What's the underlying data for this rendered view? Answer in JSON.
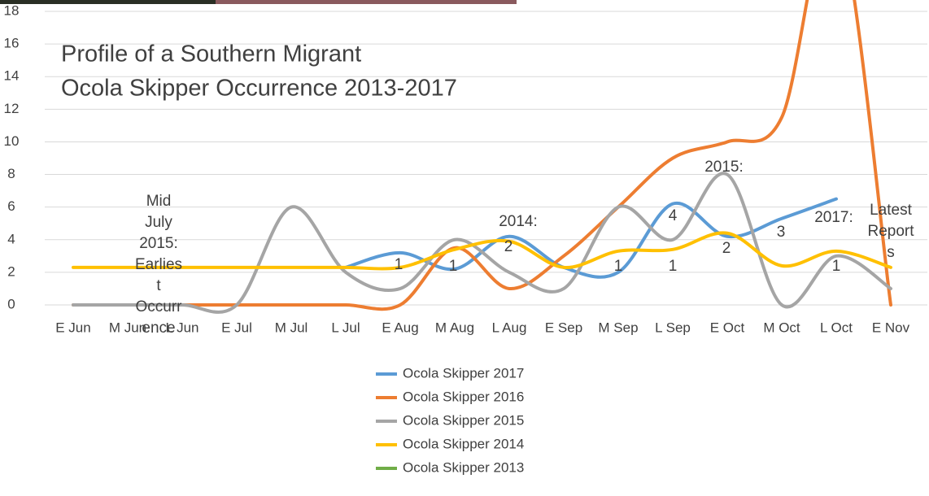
{
  "chart_data": {
    "type": "line",
    "title": [
      "Profile of a Southern Migrant",
      "Ocola Skipper Occurrence 2013-2017"
    ],
    "categories": [
      "E Jun",
      "M Jun",
      "L Jun",
      "E Jul",
      "M Jul",
      "L Jul",
      "E Aug",
      "M Aug",
      "L Aug",
      "E Sep",
      "M Sep",
      "L Sep",
      "E Oct",
      "M Oct",
      "L Oct",
      "E Nov"
    ],
    "series": [
      {
        "name": "Ocola Skipper 2017",
        "color": "#5b9bd5",
        "values": [
          null,
          null,
          null,
          null,
          null,
          2.3,
          3.2,
          2.2,
          4.2,
          2.3,
          2,
          6.2,
          4.2,
          5.3,
          6.5,
          null
        ]
      },
      {
        "name": "Ocola Skipper 2016",
        "color": "#ed7d31",
        "values": [
          0,
          0,
          0,
          0,
          0,
          0,
          0,
          3.5,
          1,
          3,
          6,
          9,
          10,
          11.5,
          24,
          0
        ]
      },
      {
        "name": "Ocola Skipper 2015",
        "color": "#a5a5a5",
        "values": [
          0,
          0,
          0,
          0,
          6,
          2,
          1,
          4,
          2,
          1,
          6,
          4,
          8,
          0,
          3,
          1
        ]
      },
      {
        "name": "Ocola Skipper 2014",
        "color": "#ffc000",
        "values": [
          2.3,
          2.3,
          2.3,
          2.3,
          2.3,
          2.3,
          2.3,
          3.4,
          3.9,
          2.3,
          3.3,
          3.4,
          4.4,
          2.4,
          3.3,
          2.3
        ]
      },
      {
        "name": "Ocola Skipper 2013",
        "color": "#70ad47",
        "values": [
          null,
          null,
          null,
          null,
          null,
          null,
          null,
          null,
          null,
          null,
          null,
          null,
          null,
          null,
          null,
          null
        ]
      }
    ],
    "annotations": [
      "Mid July 2015: Earliest Occurrence",
      "2014:",
      "2015:",
      "2017:",
      "Latest Reports",
      "1",
      "1",
      "2",
      "1",
      "1",
      "4",
      "2",
      "3",
      "1"
    ],
    "ylim": [
      0,
      18
    ],
    "yticks": [
      0,
      2,
      4,
      6,
      8,
      10,
      12,
      14,
      16,
      18
    ],
    "grid": true,
    "legend": "bottom"
  }
}
